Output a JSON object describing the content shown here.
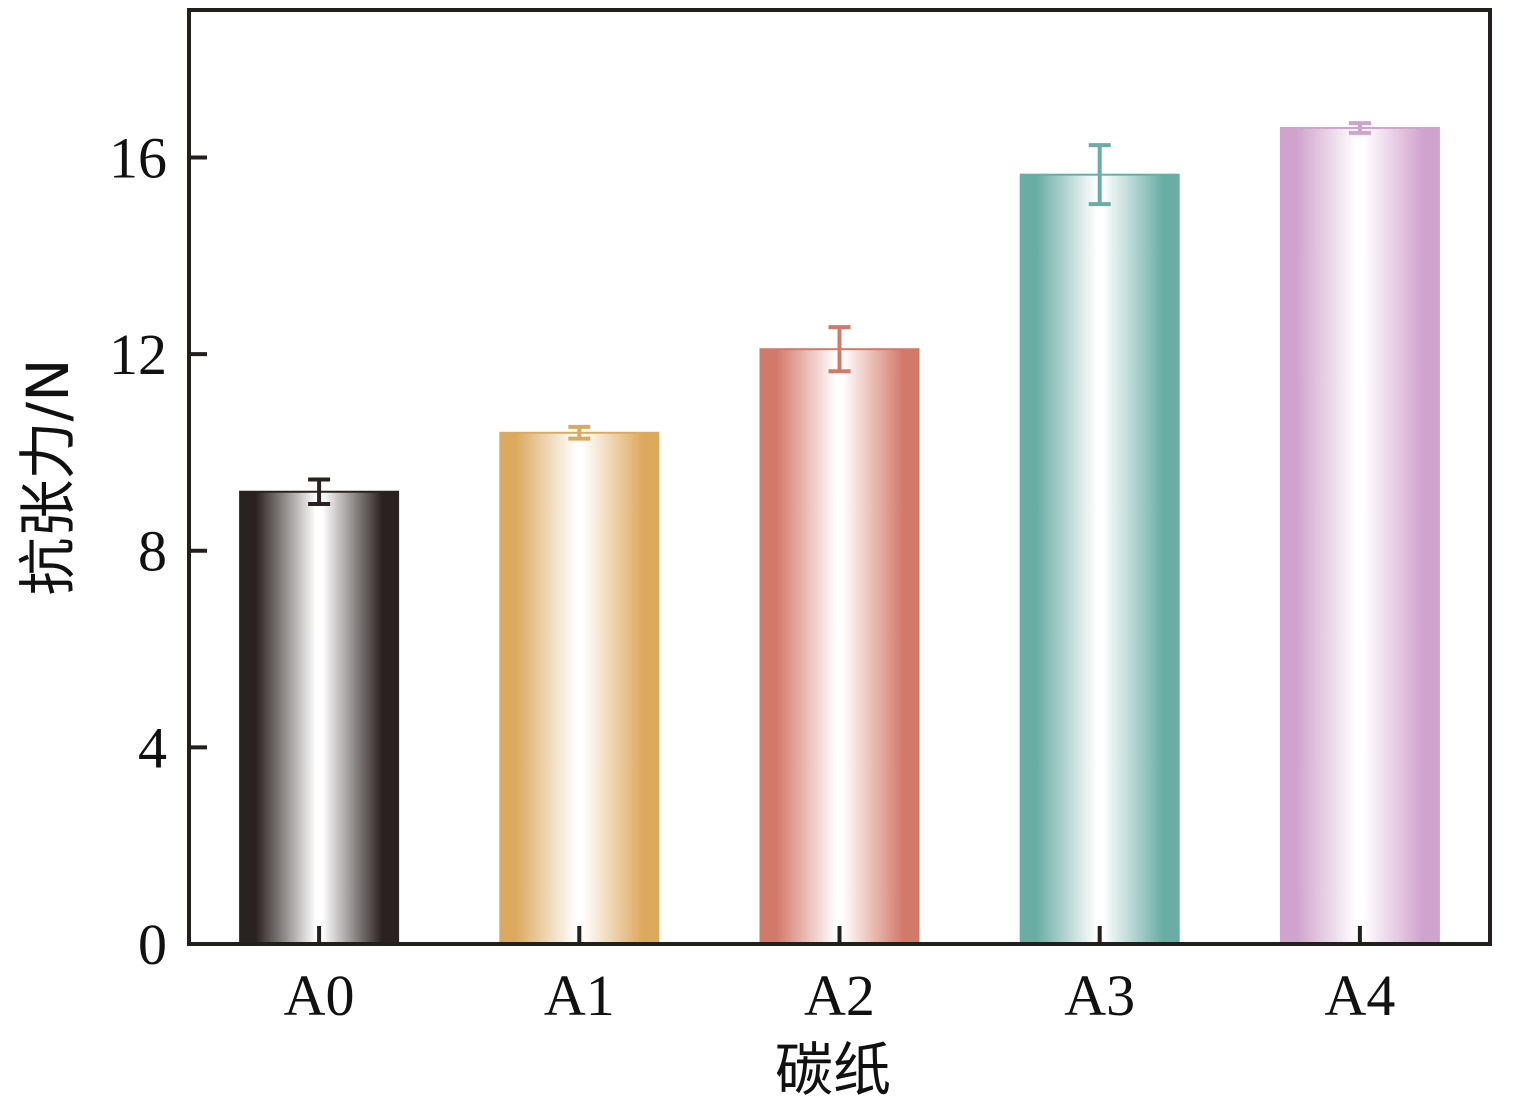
{
  "chart_data": {
    "type": "bar",
    "xlabel": "碳纸",
    "ylabel": "抗张力/N",
    "ylim": [
      0,
      19
    ],
    "yticks": [
      0,
      4,
      8,
      12,
      16
    ],
    "categories": [
      "A0",
      "A1",
      "A2",
      "A3",
      "A4"
    ],
    "values": [
      9.2,
      10.4,
      12.1,
      15.65,
      16.6
    ],
    "errors": [
      0.25,
      0.12,
      0.45,
      0.6,
      0.1
    ],
    "colors": [
      "#2a2220",
      "#dcaa5e",
      "#d27a6a",
      "#6aada4",
      "#d0a3cc"
    ],
    "grid": false,
    "legend": "none"
  }
}
